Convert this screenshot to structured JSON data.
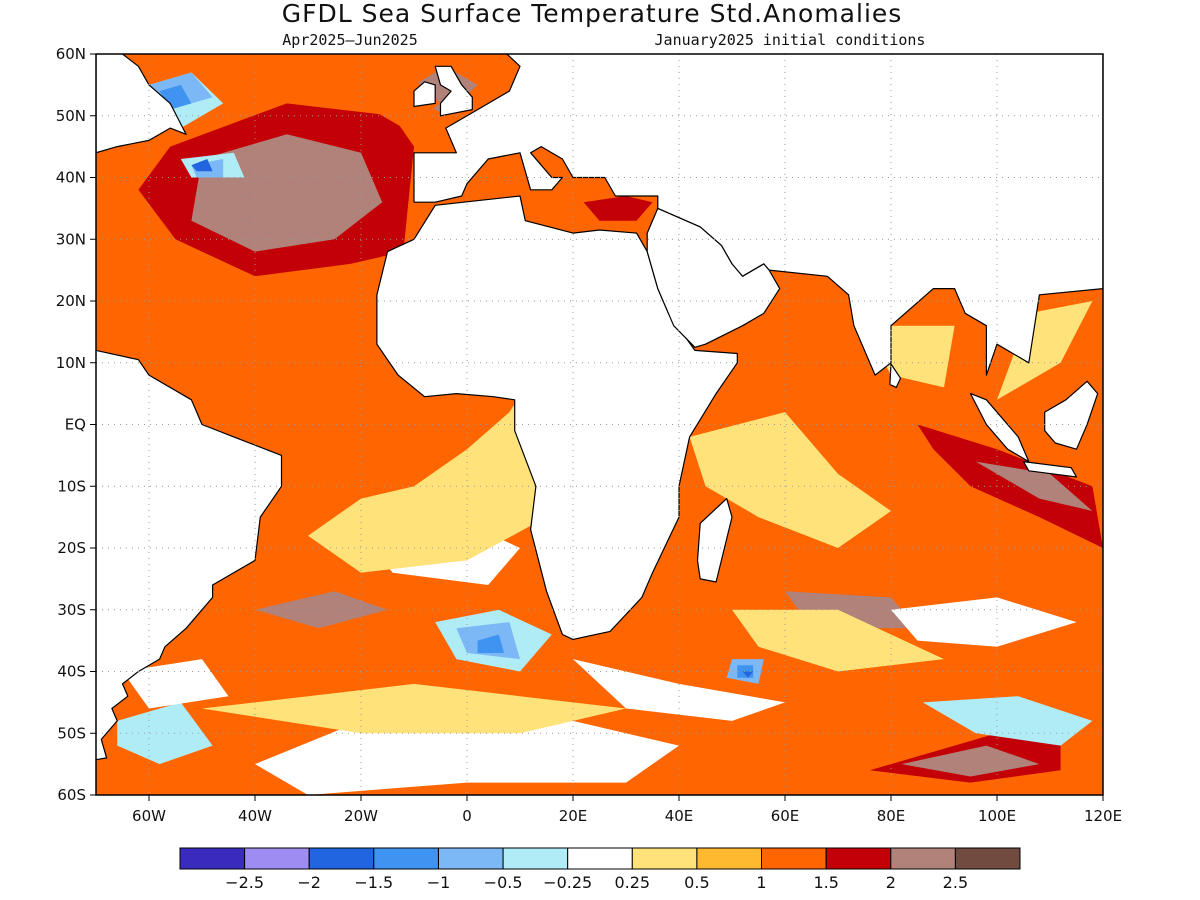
{
  "title": "GFDL Sea Surface Temperature Std.Anomalies",
  "subtitle_left": "Apr2025–Jun2025",
  "subtitle_right": "January2025 initial conditions",
  "map": {
    "lon_range": [
      -70,
      120
    ],
    "lat_range": [
      -60,
      60
    ],
    "lat_ticks": [
      {
        "value": 60,
        "label": "60N"
      },
      {
        "value": 50,
        "label": "50N"
      },
      {
        "value": 40,
        "label": "40N"
      },
      {
        "value": 30,
        "label": "30N"
      },
      {
        "value": 20,
        "label": "20N"
      },
      {
        "value": 10,
        "label": "10N"
      },
      {
        "value": 0,
        "label": "EQ"
      },
      {
        "value": -10,
        "label": "10S"
      },
      {
        "value": -20,
        "label": "20S"
      },
      {
        "value": -30,
        "label": "30S"
      },
      {
        "value": -40,
        "label": "40S"
      },
      {
        "value": -50,
        "label": "50S"
      },
      {
        "value": -60,
        "label": "60S"
      }
    ],
    "lon_ticks": [
      {
        "value": -60,
        "label": "60W"
      },
      {
        "value": -40,
        "label": "40W"
      },
      {
        "value": -20,
        "label": "20W"
      },
      {
        "value": 0,
        "label": "0"
      },
      {
        "value": 20,
        "label": "20E"
      },
      {
        "value": 40,
        "label": "40E"
      },
      {
        "value": 60,
        "label": "60E"
      },
      {
        "value": 80,
        "label": "80E"
      },
      {
        "value": 100,
        "label": "100E"
      },
      {
        "value": 120,
        "label": "120E"
      }
    ],
    "grid": "dotted",
    "land_color": "#ffffff"
  },
  "colorbar": {
    "colors": [
      "#3a2bbf",
      "#9e8cf2",
      "#2265e0",
      "#3f94f2",
      "#7bb8f5",
      "#b0ecf6",
      "#ffffff",
      "#ffe27a",
      "#ffb931",
      "#ff6500",
      "#c30008",
      "#b0827a",
      "#714b3f"
    ],
    "labels": [
      "−2.5",
      "−2",
      "−1.5",
      "−1",
      "−0.5",
      "−0.25",
      "0.25",
      "0.5",
      "1",
      "1.5",
      "2",
      "2.5"
    ]
  },
  "anomaly_regions": [
    {
      "level": 10,
      "polys": [
        [
          [
            -56,
            45
          ],
          [
            -34,
            52
          ],
          [
            -14,
            50
          ],
          [
            -10,
            45
          ],
          [
            -12,
            28
          ],
          [
            -22,
            26
          ],
          [
            -40,
            24
          ],
          [
            -55,
            30
          ],
          [
            -62,
            38
          ]
        ],
        [
          [
            76,
            -56
          ],
          [
            100,
            -50
          ],
          [
            112,
            -50
          ],
          [
            112,
            -56
          ],
          [
            95,
            -58
          ]
        ],
        [
          [
            85,
            0
          ],
          [
            100,
            -4
          ],
          [
            118,
            -10
          ],
          [
            120,
            -20
          ],
          [
            108,
            -15
          ],
          [
            95,
            -10
          ],
          [
            88,
            -4
          ]
        ],
        [
          [
            22,
            36
          ],
          [
            30,
            37
          ],
          [
            35,
            36
          ],
          [
            32,
            33
          ],
          [
            25,
            33
          ]
        ]
      ]
    },
    {
      "level": 11,
      "polys": [
        [
          [
            -50,
            43
          ],
          [
            -34,
            47
          ],
          [
            -20,
            44
          ],
          [
            -16,
            36
          ],
          [
            -25,
            30
          ],
          [
            -40,
            28
          ],
          [
            -52,
            33
          ]
        ],
        [
          [
            82,
            -55
          ],
          [
            98,
            -52
          ],
          [
            108,
            -55
          ],
          [
            95,
            -57
          ]
        ],
        [
          [
            96,
            -6
          ],
          [
            110,
            -8
          ],
          [
            118,
            -14
          ],
          [
            108,
            -12
          ]
        ],
        [
          [
            -12,
            54
          ],
          [
            -4,
            58
          ],
          [
            2,
            55
          ],
          [
            -4,
            50
          ]
        ],
        [
          [
            -40,
            -30
          ],
          [
            -25,
            -27
          ],
          [
            -15,
            -30
          ],
          [
            -28,
            -33
          ]
        ],
        [
          [
            60,
            -27
          ],
          [
            80,
            -28
          ],
          [
            85,
            -33
          ],
          [
            65,
            -33
          ]
        ]
      ]
    },
    {
      "level": 9,
      "polys": [
        [
          [
            -70,
            22
          ],
          [
            -58,
            20
          ],
          [
            -40,
            12
          ],
          [
            -30,
            8
          ],
          [
            -45,
            4
          ],
          [
            -60,
            12
          ],
          [
            -70,
            14
          ]
        ],
        [
          [
            60,
            24
          ],
          [
            70,
            18
          ],
          [
            68,
            10
          ],
          [
            60,
            14
          ]
        ],
        [
          [
            -60,
            -36
          ],
          [
            -40,
            -30
          ],
          [
            -20,
            -35
          ],
          [
            -30,
            -42
          ],
          [
            -50,
            -45
          ]
        ],
        [
          [
            20,
            -40
          ],
          [
            40,
            -37
          ],
          [
            60,
            -40
          ],
          [
            55,
            -45
          ],
          [
            30,
            -45
          ]
        ],
        [
          [
            70,
            -40
          ],
          [
            95,
            -36
          ],
          [
            110,
            -42
          ],
          [
            100,
            -46
          ],
          [
            80,
            -45
          ]
        ],
        [
          [
            -20,
            52
          ],
          [
            -10,
            56
          ],
          [
            -5,
            52
          ],
          [
            -12,
            48
          ]
        ],
        [
          [
            10,
            -46
          ],
          [
            30,
            -48
          ],
          [
            50,
            -52
          ],
          [
            30,
            -55
          ],
          [
            10,
            -52
          ]
        ]
      ]
    },
    {
      "level": 5,
      "polys": [
        [
          [
            -64,
            54
          ],
          [
            -52,
            57
          ],
          [
            -46,
            52
          ],
          [
            -54,
            48
          ],
          [
            -64,
            49
          ]
        ],
        [
          [
            -54,
            43
          ],
          [
            -44,
            44
          ],
          [
            -42,
            40
          ],
          [
            -52,
            40
          ]
        ],
        [
          [
            -6,
            -32
          ],
          [
            6,
            -30
          ],
          [
            16,
            -34
          ],
          [
            10,
            -40
          ],
          [
            -2,
            -38
          ]
        ],
        [
          [
            -66,
            -48
          ],
          [
            -54,
            -45
          ],
          [
            -48,
            -52
          ],
          [
            -58,
            -55
          ],
          [
            -66,
            -52
          ]
        ],
        [
          [
            -28,
            -55
          ],
          [
            -18,
            -52
          ],
          [
            -14,
            -57
          ],
          [
            -24,
            -59
          ]
        ],
        [
          [
            86,
            -45
          ],
          [
            104,
            -44
          ],
          [
            118,
            -48
          ],
          [
            112,
            -52
          ],
          [
            96,
            -50
          ]
        ]
      ]
    },
    {
      "level": 4,
      "polys": [
        [
          [
            -60,
            55
          ],
          [
            -52,
            57
          ],
          [
            -48,
            53
          ],
          [
            -56,
            51
          ]
        ],
        [
          [
            -2,
            -33
          ],
          [
            8,
            -32
          ],
          [
            10,
            -38
          ],
          [
            0,
            -37
          ]
        ],
        [
          [
            50,
            -38
          ],
          [
            56,
            -38
          ],
          [
            55,
            -42
          ],
          [
            49,
            -41
          ]
        ],
        [
          [
            66,
            -35
          ],
          [
            72,
            -35
          ],
          [
            70,
            -38
          ],
          [
            65,
            -37
          ]
        ],
        [
          [
            -52,
            42
          ],
          [
            -46,
            43
          ],
          [
            -46,
            40
          ],
          [
            -51,
            40
          ]
        ]
      ]
    },
    {
      "level": 3,
      "polys": [
        [
          [
            -58,
            54
          ],
          [
            -54,
            55
          ],
          [
            -52,
            52
          ],
          [
            -56,
            51
          ]
        ],
        [
          [
            2,
            -35
          ],
          [
            6,
            -34
          ],
          [
            7,
            -37
          ],
          [
            2,
            -37
          ]
        ],
        [
          [
            51,
            -39
          ],
          [
            54,
            -39
          ],
          [
            54,
            -41
          ],
          [
            51,
            -41
          ]
        ]
      ]
    },
    {
      "level": 2,
      "polys": [
        [
          [
            -52,
            42
          ],
          [
            -49,
            43
          ],
          [
            -48,
            41
          ],
          [
            -51,
            41
          ]
        ],
        [
          [
            52,
            -40
          ],
          [
            54,
            -40
          ],
          [
            53,
            -41
          ]
        ]
      ]
    },
    {
      "level": 6,
      "polys": [
        [
          [
            -20,
            -18
          ],
          [
            0,
            -16
          ],
          [
            10,
            -20
          ],
          [
            4,
            -26
          ],
          [
            -14,
            -24
          ]
        ],
        [
          [
            -40,
            -55
          ],
          [
            -20,
            -48
          ],
          [
            0,
            -50
          ],
          [
            20,
            -48
          ],
          [
            40,
            -52
          ],
          [
            30,
            -58
          ],
          [
            0,
            -58
          ],
          [
            -30,
            -60
          ]
        ],
        [
          [
            80,
            -30
          ],
          [
            100,
            -28
          ],
          [
            115,
            -32
          ],
          [
            100,
            -36
          ],
          [
            85,
            -35
          ]
        ],
        [
          [
            -65,
            -40
          ],
          [
            -50,
            -38
          ],
          [
            -45,
            -44
          ],
          [
            -60,
            -46
          ]
        ],
        [
          [
            20,
            -38
          ],
          [
            40,
            -42
          ],
          [
            60,
            -45
          ],
          [
            50,
            -48
          ],
          [
            30,
            -46
          ]
        ]
      ]
    },
    {
      "level": 7,
      "polys": [
        [
          [
            -8,
            28
          ],
          [
            10,
            20
          ],
          [
            14,
            10
          ],
          [
            8,
            2
          ],
          [
            0,
            -4
          ],
          [
            -10,
            -10
          ],
          [
            -20,
            -12
          ],
          [
            -30,
            -18
          ],
          [
            -20,
            -24
          ],
          [
            0,
            -22
          ],
          [
            15,
            -15
          ],
          [
            25,
            -5
          ],
          [
            10,
            5
          ],
          [
            0,
            10
          ],
          [
            -10,
            20
          ]
        ],
        [
          [
            42,
            -2
          ],
          [
            60,
            2
          ],
          [
            70,
            -8
          ],
          [
            80,
            -14
          ],
          [
            70,
            -20
          ],
          [
            55,
            -15
          ],
          [
            45,
            -10
          ]
        ],
        [
          [
            75,
            16
          ],
          [
            92,
            16
          ],
          [
            90,
            6
          ],
          [
            80,
            8
          ]
        ],
        [
          [
            100,
            4
          ],
          [
            106,
            18
          ],
          [
            118,
            20
          ],
          [
            112,
            10
          ]
        ],
        [
          [
            -50,
            -46
          ],
          [
            -30,
            -44
          ],
          [
            -10,
            -42
          ],
          [
            10,
            -44
          ],
          [
            30,
            -46
          ],
          [
            10,
            -50
          ],
          [
            -20,
            -50
          ]
        ],
        [
          [
            50,
            -30
          ],
          [
            70,
            -30
          ],
          [
            90,
            -38
          ],
          [
            70,
            -40
          ],
          [
            55,
            -36
          ]
        ]
      ]
    }
  ]
}
